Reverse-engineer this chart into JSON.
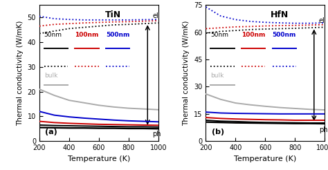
{
  "title_a": "TiN",
  "title_b": "HfN",
  "xlabel": "Temperature (K)",
  "ylabel": "Thermal conductivity (W/mK)",
  "label_a": "(a)",
  "label_b": "(b)",
  "T": [
    200,
    300,
    400,
    500,
    600,
    700,
    800,
    900,
    1000
  ],
  "TiN": {
    "el_50nm": [
      43.5,
      44.5,
      45.5,
      46.0,
      46.5,
      47.0,
      47.2,
      47.5,
      47.8
    ],
    "el_100nm": [
      46.5,
      47.2,
      47.5,
      47.8,
      48.0,
      48.2,
      48.3,
      48.5,
      48.7
    ],
    "el_500nm": [
      50.5,
      49.5,
      49.2,
      49.0,
      49.0,
      49.0,
      49.0,
      49.1,
      49.2
    ],
    "ph_50nm": [
      6.5,
      6.3,
      6.2,
      6.1,
      6.0,
      5.9,
      5.8,
      5.8,
      5.7
    ],
    "ph_100nm": [
      8.0,
      7.5,
      7.2,
      7.0,
      6.8,
      6.7,
      6.6,
      6.5,
      6.4
    ],
    "ph_500nm": [
      12.0,
      10.5,
      9.8,
      9.3,
      8.9,
      8.5,
      8.2,
      8.0,
      7.8
    ],
    "bulk": [
      21.0,
      18.5,
      16.5,
      15.5,
      14.5,
      13.8,
      13.3,
      13.0,
      12.7
    ],
    "total_50nm": [
      5.5,
      5.4,
      5.3,
      5.3,
      5.2,
      5.2,
      5.1,
      5.1,
      5.0
    ]
  },
  "HfN": {
    "el_50nm": [
      59.5,
      60.5,
      61.0,
      61.5,
      61.8,
      62.0,
      62.2,
      62.5,
      62.8
    ],
    "el_100nm": [
      62.0,
      62.5,
      63.0,
      63.2,
      63.5,
      63.7,
      63.8,
      64.0,
      64.2
    ],
    "el_500nm": [
      74.0,
      69.0,
      67.0,
      66.0,
      65.5,
      65.2,
      65.0,
      65.0,
      65.2
    ],
    "ph_50nm": [
      11.5,
      11.0,
      10.8,
      10.5,
      10.3,
      10.2,
      10.1,
      10.0,
      10.0
    ],
    "ph_100nm": [
      13.0,
      12.5,
      12.2,
      12.0,
      11.8,
      11.7,
      11.5,
      11.5,
      11.5
    ],
    "ph_500nm": [
      16.0,
      15.5,
      15.3,
      15.2,
      15.1,
      15.0,
      15.0,
      15.0,
      15.0
    ],
    "bulk": [
      26.0,
      23.0,
      21.0,
      20.0,
      19.2,
      18.5,
      18.0,
      17.5,
      17.2
    ],
    "total_50nm": [
      10.5,
      10.3,
      10.1,
      10.0,
      9.9,
      9.8,
      9.7,
      9.7,
      9.6
    ]
  },
  "colors": {
    "50nm": "#000000",
    "100nm": "#cc0000",
    "500nm": "#0000cc",
    "bulk": "#aaaaaa"
  },
  "ylim_a": [
    0,
    55
  ],
  "ylim_b": [
    0,
    75
  ],
  "yticks_a": [
    0,
    10,
    20,
    30,
    40,
    50
  ],
  "yticks_b": [
    0,
    15,
    30,
    45,
    60,
    75
  ],
  "xticks": [
    200,
    400,
    600,
    800,
    1000
  ]
}
